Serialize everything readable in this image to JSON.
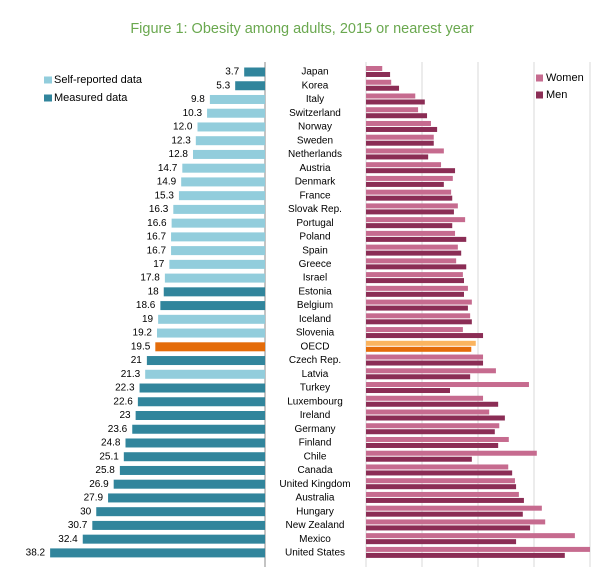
{
  "chart_data": [
    {
      "type": "bar",
      "title": "Figure 1: Obesity among adults, 2015 or nearest year",
      "categories": [
        "Japan",
        "Korea",
        "Italy",
        "Switzerland",
        "Norway",
        "Sweden",
        "Netherlands",
        "Austria",
        "Denmark",
        "France",
        "Slovak Rep.",
        "Portugal",
        "Poland",
        "Spain",
        "Greece",
        "Israel",
        "Estonia",
        "Belgium",
        "Iceland",
        "Slovenia",
        "OECD",
        "Czech Rep.",
        "Latvia",
        "Turkey",
        "Luxembourg",
        "Ireland",
        "Germany",
        "Finland",
        "Chile",
        "Canada",
        "United Kingdom",
        "Australia",
        "Hungary",
        "New Zealand",
        "Mexico",
        "United States"
      ],
      "values": [
        3.7,
        5.3,
        9.8,
        10.3,
        12,
        12.3,
        12.8,
        14.7,
        14.9,
        15.3,
        16.3,
        16.6,
        16.7,
        16.7,
        17,
        17.8,
        18,
        18.6,
        19,
        19.2,
        19.5,
        21,
        21.3,
        22.3,
        22.6,
        23,
        23.6,
        24.8,
        25.1,
        25.8,
        26.9,
        27.9,
        30,
        30.7,
        32.4,
        38.2
      ],
      "value_labels": [
        "3.7",
        "5.3",
        "9.8",
        "10.3",
        "12.0",
        "12.3",
        "12.8",
        "14.7",
        "14.9",
        "15.3",
        "16.3",
        "16.6",
        "16.7",
        "16.7",
        "17",
        "17.8",
        "18",
        "18.6",
        "19",
        "19.2",
        "19.5",
        "21",
        "21.3",
        "22.3",
        "22.6",
        "23",
        "23.6",
        "24.8",
        "25.1",
        "25.8",
        "26.9",
        "27.9",
        "30",
        "30.7",
        "32.4",
        "38.2"
      ],
      "colors": [
        "#31859c",
        "#31859c",
        "#92cddc",
        "#92cddc",
        "#92cddc",
        "#92cddc",
        "#92cddc",
        "#92cddc",
        "#92cddc",
        "#92cddc",
        "#92cddc",
        "#92cddc",
        "#92cddc",
        "#92cddc",
        "#92cddc",
        "#92cddc",
        "#31859c",
        "#31859c",
        "#92cddc",
        "#92cddc",
        "#e46c0a",
        "#31859c",
        "#92cddc",
        "#31859c",
        "#31859c",
        "#31859c",
        "#31859c",
        "#31859c",
        "#31859c",
        "#31859c",
        "#31859c",
        "#31859c",
        "#31859c",
        "#31859c",
        "#31859c",
        "#31859c"
      ],
      "legend": [
        {
          "name": "Self-reported data",
          "color": "#92cddc"
        },
        {
          "name": "Measured data",
          "color": "#31859c"
        }
      ],
      "xlim": [
        0,
        40
      ]
    },
    {
      "type": "grouped-bar",
      "series": [
        {
          "name": "Women",
          "color": "#c66b8f",
          "highlight_color": "#fbb45f",
          "values": [
            2.9,
            4.5,
            8.8,
            9.3,
            11.6,
            12.1,
            13.9,
            13.4,
            15.5,
            15.2,
            16.4,
            17.7,
            15.9,
            16.4,
            16.1,
            17.3,
            18.2,
            18.9,
            18.6,
            17.3,
            19.6,
            20.9,
            23.2,
            29.1,
            20.9,
            22,
            23.8,
            25.5,
            30.5,
            25.4,
            26.6,
            27.3,
            31.4,
            32,
            37.3,
            40
          ]
        },
        {
          "name": "Men",
          "color": "#8b2d55",
          "highlight_color": "#e46c0a",
          "values": [
            4.3,
            5.9,
            10.5,
            10.9,
            12.7,
            12.1,
            11.1,
            15.9,
            13.9,
            15.4,
            15.7,
            15.4,
            17.9,
            17,
            17.9,
            17.5,
            17.5,
            18.2,
            18.9,
            20.9,
            18.8,
            20.9,
            18.6,
            15,
            23.6,
            24.8,
            23,
            23.6,
            18.9,
            26.1,
            26.8,
            28.2,
            28,
            29.3,
            26.8,
            35.5
          ]
        }
      ],
      "highlight_index": 20,
      "xlim": [
        0,
        40
      ],
      "xticks": [
        0,
        10,
        20,
        30,
        40
      ],
      "grid": true
    }
  ]
}
